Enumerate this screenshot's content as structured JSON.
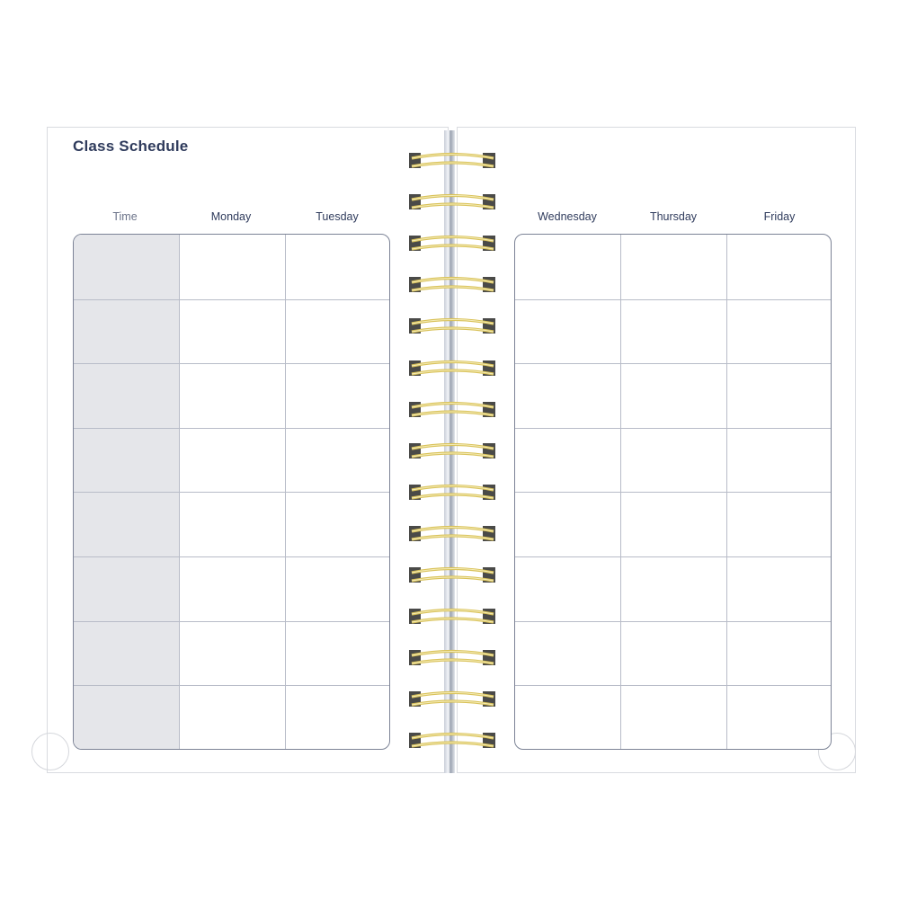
{
  "title": "Class Schedule",
  "left_headers": [
    "Time",
    "Monday",
    "Tuesday"
  ],
  "right_headers": [
    "Wednesday",
    "Thursday",
    "Friday"
  ],
  "colors": {
    "text": "#2f3b5c",
    "time_column": "#e5e6ea",
    "ring": "#d9c25a"
  }
}
